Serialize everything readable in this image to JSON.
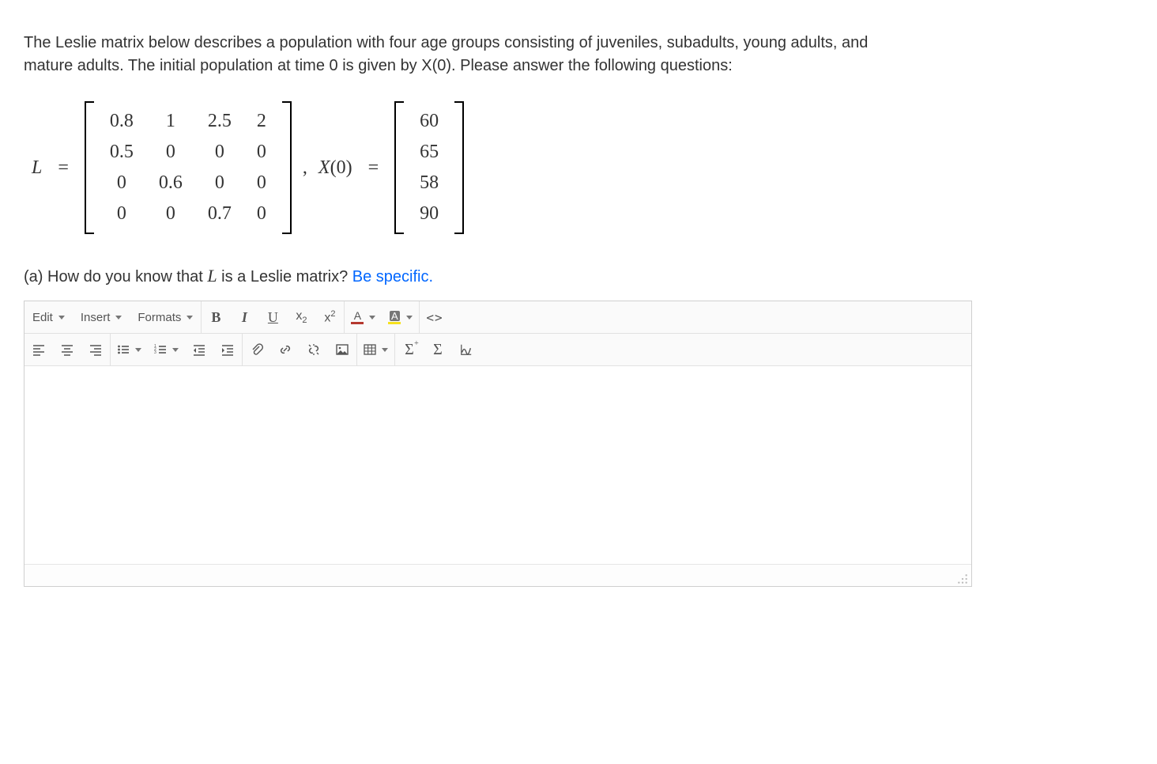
{
  "intro_text": "The Leslie matrix below describes a population with four age groups consisting of juveniles, subadults, young adults, and mature adults. The initial population at time 0 is given by X(0). Please answer the following questions:",
  "question_a": {
    "prefix": "(a) How do you know that ",
    "var": "L",
    "mid": " is a Leslie matrix? ",
    "emph": "Be specific."
  },
  "math": {
    "L_label": "L",
    "eq": "=",
    "comma": ",",
    "X0_label_left": "X",
    "X0_label_paren": "(0)",
    "L_matrix": [
      [
        "0.8",
        "1",
        "2.5",
        "2"
      ],
      [
        "0.5",
        "0",
        "0",
        "0"
      ],
      [
        "0",
        "0.6",
        "0",
        "0"
      ],
      [
        "0",
        "0",
        "0.7",
        "0"
      ]
    ],
    "X0_vector": [
      "60",
      "65",
      "58",
      "90"
    ]
  },
  "editor": {
    "menus": {
      "edit": "Edit",
      "insert": "Insert",
      "formats": "Formats"
    },
    "body_text": ""
  },
  "toolbar_names": {
    "bold": "B",
    "italic": "I",
    "underline": "U",
    "sub": "x",
    "sub_sub": "2",
    "sup": "x",
    "sup_sup": "2",
    "fontcolor_letter": "A",
    "hilite_letter": "A",
    "code": "<>"
  },
  "colors": {
    "link_blue": "#0066ff",
    "fontcolor_bar": "#b5392f",
    "hilite_bar": "#f6e11d"
  }
}
